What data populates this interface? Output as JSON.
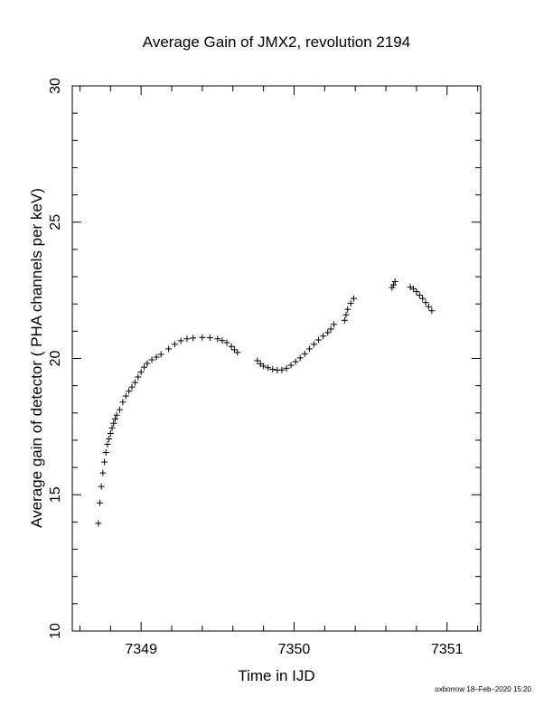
{
  "chart_data": {
    "type": "scatter",
    "title": "Average Gain of JMX2, revolution 2194",
    "xlabel": "Time in IJD",
    "ylabel": "Average gain of detector ( PHA channels per keV)",
    "xlim": [
      7348.55,
      7351.22
    ],
    "ylim": [
      10,
      30
    ],
    "xticks": [
      7349,
      7350,
      7351
    ],
    "xtick_labels": [
      "7349",
      "7350",
      "7351"
    ],
    "yticks": [
      10,
      15,
      20,
      25,
      30
    ],
    "ytick_labels": [
      "10",
      "15",
      "20",
      "25",
      "30"
    ],
    "marker": "+",
    "grid": false,
    "series": [
      {
        "points": [
          [
            7348.72,
            13.95
          ],
          [
            7348.73,
            14.7
          ],
          [
            7348.74,
            15.3
          ],
          [
            7348.75,
            15.8
          ],
          [
            7348.76,
            16.2
          ],
          [
            7348.77,
            16.55
          ],
          [
            7348.78,
            16.85
          ],
          [
            7348.79,
            17.05
          ],
          [
            7348.8,
            17.25
          ],
          [
            7348.81,
            17.45
          ],
          [
            7348.82,
            17.62
          ],
          [
            7348.83,
            17.78
          ],
          [
            7348.84,
            17.92
          ],
          [
            7348.86,
            18.12
          ],
          [
            7348.88,
            18.4
          ],
          [
            7348.9,
            18.62
          ],
          [
            7348.92,
            18.8
          ],
          [
            7348.94,
            18.95
          ],
          [
            7348.96,
            19.12
          ],
          [
            7348.98,
            19.32
          ],
          [
            7349.0,
            19.5
          ],
          [
            7349.02,
            19.68
          ],
          [
            7349.04,
            19.82
          ],
          [
            7349.07,
            19.95
          ],
          [
            7349.1,
            20.05
          ],
          [
            7349.13,
            20.15
          ],
          [
            7349.18,
            20.35
          ],
          [
            7349.22,
            20.52
          ],
          [
            7349.26,
            20.65
          ],
          [
            7349.3,
            20.72
          ],
          [
            7349.34,
            20.75
          ],
          [
            7349.4,
            20.77
          ],
          [
            7349.45,
            20.76
          ],
          [
            7349.5,
            20.72
          ],
          [
            7349.53,
            20.66
          ],
          [
            7349.56,
            20.58
          ],
          [
            7349.59,
            20.44
          ],
          [
            7349.61,
            20.32
          ],
          [
            7349.63,
            20.22
          ],
          [
            7349.76,
            19.92
          ],
          [
            7349.78,
            19.8
          ],
          [
            7349.8,
            19.72
          ],
          [
            7349.83,
            19.66
          ],
          [
            7349.86,
            19.6
          ],
          [
            7349.89,
            19.57
          ],
          [
            7349.92,
            19.58
          ],
          [
            7349.95,
            19.64
          ],
          [
            7349.98,
            19.75
          ],
          [
            7350.01,
            19.88
          ],
          [
            7350.04,
            20.02
          ],
          [
            7350.07,
            20.17
          ],
          [
            7350.1,
            20.35
          ],
          [
            7350.13,
            20.52
          ],
          [
            7350.16,
            20.68
          ],
          [
            7350.19,
            20.82
          ],
          [
            7350.22,
            20.95
          ],
          [
            7350.24,
            21.08
          ],
          [
            7350.26,
            21.25
          ],
          [
            7350.33,
            21.4
          ],
          [
            7350.34,
            21.6
          ],
          [
            7350.35,
            21.8
          ],
          [
            7350.37,
            22.02
          ],
          [
            7350.39,
            22.2
          ],
          [
            7350.64,
            22.6
          ],
          [
            7350.65,
            22.7
          ],
          [
            7350.66,
            22.82
          ],
          [
            7350.76,
            22.62
          ],
          [
            7350.78,
            22.55
          ],
          [
            7350.8,
            22.45
          ],
          [
            7350.82,
            22.32
          ],
          [
            7350.84,
            22.2
          ],
          [
            7350.86,
            22.05
          ],
          [
            7350.88,
            21.9
          ],
          [
            7350.9,
            21.75
          ]
        ]
      }
    ]
  },
  "footer": "oxborrow 18–Feb–2020 15:20"
}
